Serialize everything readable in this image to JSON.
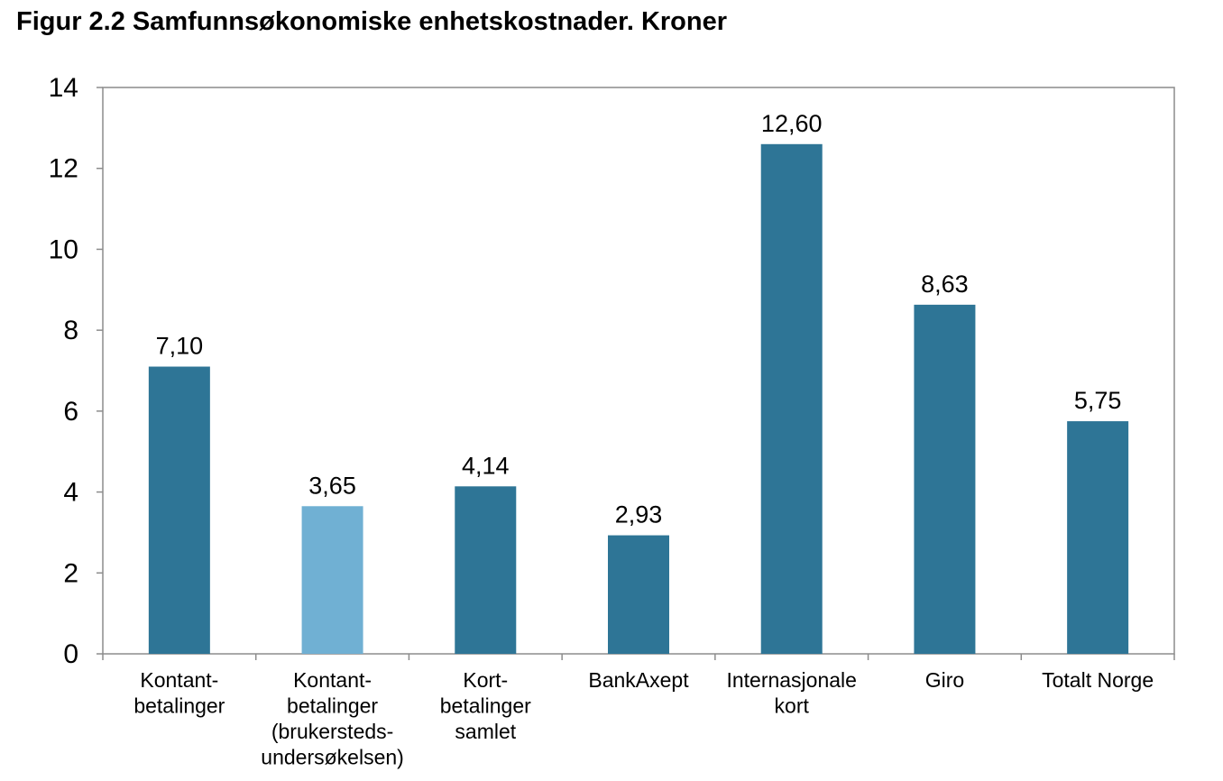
{
  "chart_data": {
    "type": "bar",
    "title": "Figur 2.2 Samfunnsøkonomiske enhetskostnader. Kroner",
    "xlabel": "",
    "ylabel": "",
    "ylim": [
      0,
      14
    ],
    "y_ticks": [
      "0",
      "2",
      "4",
      "6",
      "8",
      "10",
      "12",
      "14"
    ],
    "y_tick_values": [
      0,
      2,
      4,
      6,
      8,
      10,
      12,
      14
    ],
    "grid": false,
    "legend": "none",
    "categories": [
      [
        "Kontant-",
        "betalinger"
      ],
      [
        "Kontant-",
        "betalinger",
        "(brukersteds-",
        "undersøkelsen)"
      ],
      [
        "Kort-",
        "betalinger",
        "samlet"
      ],
      [
        "BankAxept"
      ],
      [
        "Internasjonale",
        "kort"
      ],
      [
        "Giro"
      ],
      [
        "Totalt Norge"
      ]
    ],
    "values": [
      7.1,
      3.65,
      4.14,
      2.93,
      12.6,
      8.63,
      5.75
    ],
    "value_labels": [
      "7,10",
      "3,65",
      "4,14",
      "2,93",
      "12,60",
      "8,63",
      "5,75"
    ],
    "bar_colors": [
      "#2e7596",
      "#70b0d3",
      "#2e7596",
      "#2e7596",
      "#2e7596",
      "#2e7596",
      "#2e7596"
    ],
    "colors": {
      "bar_dark": "#2e7596",
      "bar_light": "#70b0d3",
      "axis": "#8c8c8c",
      "text": "#000000"
    }
  }
}
